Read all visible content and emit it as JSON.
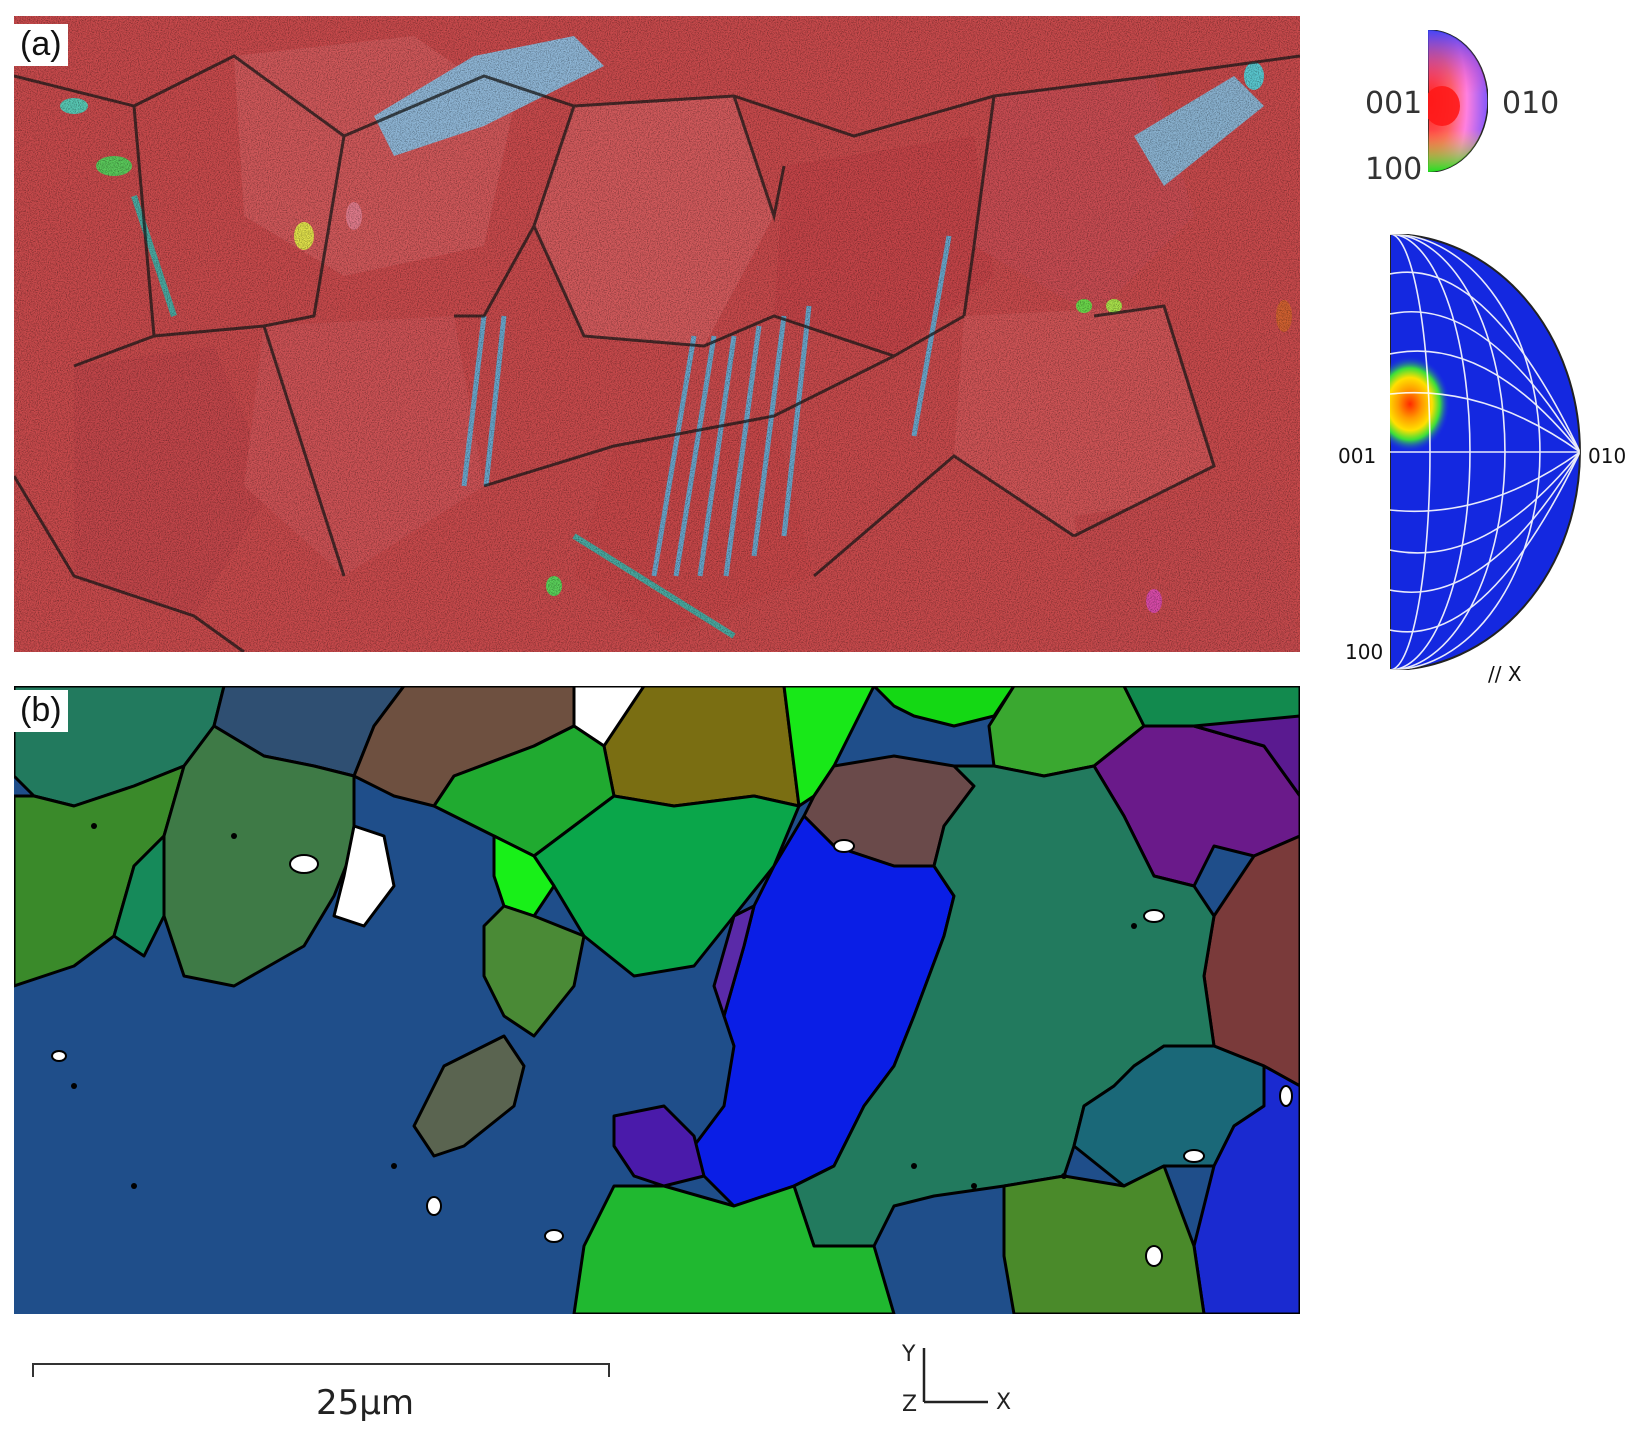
{
  "panels": {
    "a": {
      "label": "(a)"
    },
    "b": {
      "label": "(b)"
    }
  },
  "ipf_key": {
    "label_001": "001",
    "label_010": "010",
    "label_100": "100"
  },
  "pole_figure": {
    "label_001": "001",
    "label_010": "010",
    "label_100": "100",
    "axis_note": "// X"
  },
  "scale_bar": {
    "text": "25µm"
  },
  "axes_triad": {
    "y": "Y",
    "z": "Z",
    "x": "X"
  },
  "colors": {
    "map_red": "#c94a4c",
    "grain_blue": "#1f4e8a",
    "grain_bright_blue": "#0a1ee6",
    "grain_green": "#0aa64a",
    "grain_teal": "#227a5e",
    "grain_purple": "#6a1a8a",
    "grain_maroon": "#7a3a3a",
    "grain_olive": "#7a6e12",
    "boundary": "#000000"
  },
  "icons": [
    "coordinate-axes-icon",
    "ipf-color-key-icon",
    "pole-figure-icon"
  ]
}
